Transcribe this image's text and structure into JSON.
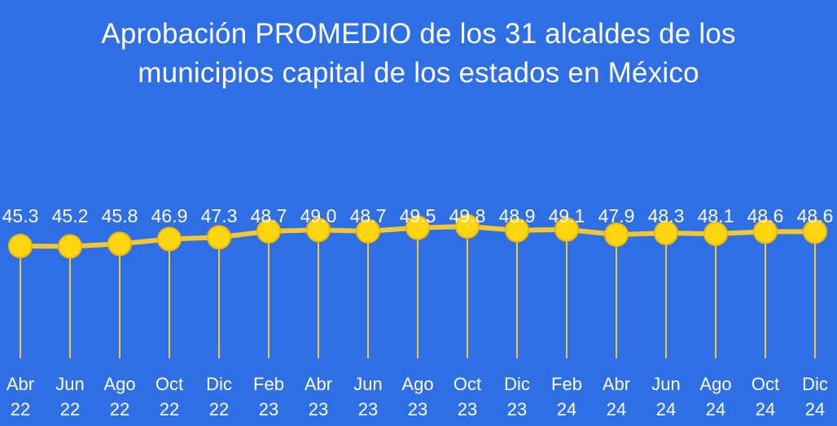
{
  "title_line1": "Aprobación  PROMEDIO  de los 31 alcaldes de los",
  "title_line2": "municipios capital de los estados en México",
  "colors": {
    "background": "#2f6fe6",
    "line": "#f2c832",
    "marker_fill": "#ffd60f",
    "marker_stroke": "#f5b800",
    "text": "#ffffff"
  },
  "chart_data": {
    "type": "line",
    "title": "Aprobación  PROMEDIO  de los 31 alcaldes de los municipios capital de los estados en México",
    "categories": [
      [
        "Abr",
        "22"
      ],
      [
        "Jun",
        "22"
      ],
      [
        "Ago",
        "22"
      ],
      [
        "Oct",
        "22"
      ],
      [
        "Dic",
        "22"
      ],
      [
        "Feb",
        "23"
      ],
      [
        "Abr",
        "23"
      ],
      [
        "Jun",
        "23"
      ],
      [
        "Ago",
        "23"
      ],
      [
        "Oct",
        "23"
      ],
      [
        "Dic",
        "23"
      ],
      [
        "Feb",
        "24"
      ],
      [
        "Abr",
        "24"
      ],
      [
        "Jun",
        "24"
      ],
      [
        "Ago",
        "24"
      ],
      [
        "Oct",
        "24"
      ],
      [
        "Dic",
        "24"
      ]
    ],
    "values": [
      45.3,
      45.2,
      45.8,
      46.9,
      47.3,
      48.7,
      49.0,
      48.7,
      49.5,
      49.8,
      48.9,
      49.1,
      47.9,
      48.3,
      48.1,
      48.6,
      48.6
    ],
    "value_labels": [
      "45.3",
      "45.2",
      "45.8",
      "46.9",
      "47.3",
      "48.7",
      "49.0",
      "48.7",
      "49.5",
      "49.8",
      "48.9",
      "49.1",
      "47.9",
      "48.3",
      "48.1",
      "48.6",
      "48.6"
    ],
    "xlabel": "",
    "ylabel": "",
    "grid": false,
    "legend": "none"
  }
}
